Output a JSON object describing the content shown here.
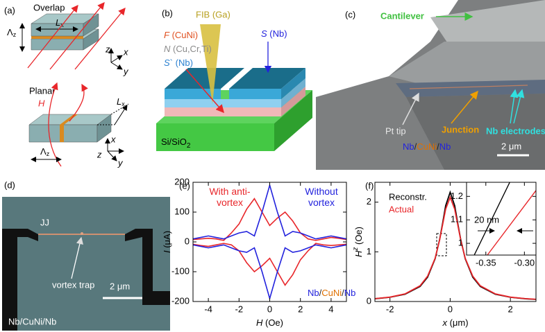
{
  "panel_a": {
    "label": "(a)",
    "overlap": "Overlap",
    "lambda_top": {
      "symbol": "Λ",
      "sub": "z"
    },
    "lx_top": {
      "symbol": "L",
      "sub": "x"
    },
    "axes_top": [
      "z",
      "y",
      "x"
    ],
    "planar": "Planar",
    "field": "H",
    "lx_bottom": {
      "symbol": "L",
      "sub": "x"
    },
    "lambda_bottom": {
      "symbol": "Λ",
      "sub": "z"
    },
    "axes_bottom": [
      "x",
      "z",
      "y"
    ]
  },
  "panel_b": {
    "label": "(b)",
    "fib": "FIB (Ga)",
    "f_layer": {
      "symbol": "F",
      "text": " (CuNi)"
    },
    "n_layer": {
      "symbol": "N",
      "text": " (Cu,Cr,Ti)"
    },
    "s_prime": {
      "symbol": "S",
      "prime": "`",
      "text": " (Nb)"
    },
    "s_layer": {
      "symbol": "S",
      "text": " (Nb)"
    },
    "substrate": {
      "text": "Si/SiO",
      "sub": "2"
    }
  },
  "panel_c": {
    "label": "(c)",
    "cantilever": "Cantilever",
    "pt_tip": "Pt tip",
    "junction": "Junction",
    "electrodes": "Nb electrodes",
    "material": [
      {
        "text": "Nb",
        "color": "#2222dd"
      },
      {
        "text": "/",
        "color": "#222222"
      },
      {
        "text": "CuNi",
        "color": "#e07000"
      },
      {
        "text": "/",
        "color": "#222222"
      },
      {
        "text": "Nb",
        "color": "#2222dd"
      }
    ],
    "scale": "2 μm"
  },
  "panel_d": {
    "label": "(d)",
    "jj": "JJ",
    "trap": "vortex trap",
    "scale": "2 μm",
    "material": "Nb/CuNi/Nb"
  },
  "chart_data": [
    {
      "type": "line",
      "label": "(e)",
      "xlabel": {
        "symbol": "H",
        "unit": "  (Oe)"
      },
      "ylabel": {
        "symbol": "I",
        "unit": " (μA)"
      },
      "x": [
        -5,
        -4.5,
        -4,
        -3.5,
        -3,
        -2.5,
        -2,
        -1.5,
        -1,
        -0.5,
        0,
        0.5,
        1,
        1.5,
        2,
        2.5,
        3,
        3.5,
        4,
        4.5,
        5
      ],
      "xlim": [
        -5,
        5
      ],
      "xticks": [
        -4,
        -2,
        0,
        2,
        4
      ],
      "ylim": [
        -200,
        200
      ],
      "yticks": [
        -200,
        -100,
        0,
        100,
        200
      ],
      "series": [
        {
          "name": "With anti-vortex",
          "color": "#e8262a",
          "values": [
            8,
            10,
            12,
            10,
            5,
            30,
            60,
            110,
            145,
            100,
            55,
            80,
            100,
            70,
            30,
            10,
            5,
            10,
            15,
            12,
            8
          ]
        },
        {
          "color": "#e8262a",
          "values": [
            -8,
            -12,
            -15,
            -10,
            -5,
            -10,
            -30,
            -70,
            -100,
            -80,
            -55,
            -100,
            -145,
            -110,
            -60,
            -30,
            -5,
            -10,
            -12,
            -10,
            -8
          ]
        },
        {
          "name": "Without vortex",
          "color": "#2222dd",
          "values": [
            10,
            15,
            20,
            15,
            10,
            20,
            30,
            35,
            20,
            100,
            190,
            100,
            20,
            35,
            30,
            20,
            10,
            15,
            20,
            15,
            10
          ]
        },
        {
          "color": "#2222dd",
          "values": [
            -10,
            -15,
            -20,
            -15,
            -10,
            -20,
            -30,
            -35,
            -20,
            -100,
            -190,
            -100,
            -20,
            -35,
            -30,
            -20,
            -10,
            -15,
            -20,
            -15,
            -10
          ]
        }
      ],
      "annotation_parts": [
        {
          "text": "Nb",
          "color": "#2222dd"
        },
        {
          "text": "/",
          "color": "#222222"
        },
        {
          "text": "CuNi",
          "color": "#e07000"
        },
        {
          "text": "/",
          "color": "#222222"
        },
        {
          "text": "Nb",
          "color": "#2222dd"
        }
      ]
    },
    {
      "type": "line",
      "label": "(f)",
      "xlabel": {
        "symbol": "x",
        "unit": " (μm)"
      },
      "ylabel": {
        "symbol": "H",
        "sup": "z",
        "unit": " (Oe)"
      },
      "x": [
        -2.5,
        -2,
        -1.5,
        -1,
        -0.75,
        -0.5,
        -0.35,
        -0.25,
        -0.15,
        0,
        0.15,
        0.25,
        0.35,
        0.5,
        0.75,
        1,
        1.5,
        2,
        2.5,
        2.85
      ],
      "xlim": [
        -2.5,
        2.85
      ],
      "xticks": [
        -2,
        0,
        2
      ],
      "ylim": [
        0,
        2.4
      ],
      "yticks": [
        0,
        1,
        2
      ],
      "series": [
        {
          "name": "Reconstr.",
          "color": "#000000",
          "values": [
            0.055,
            0.085,
            0.146,
            0.303,
            0.49,
            0.86,
            1.25,
            1.58,
            1.93,
            2.2,
            1.93,
            1.58,
            1.25,
            0.86,
            0.49,
            0.303,
            0.146,
            0.085,
            0.055,
            0.042
          ]
        },
        {
          "name": "Actual",
          "color": "#e8262a",
          "values": [
            0.058,
            0.088,
            0.153,
            0.317,
            0.51,
            0.87,
            1.24,
            1.55,
            1.86,
            2.1,
            1.86,
            1.55,
            1.24,
            0.87,
            0.51,
            0.317,
            0.153,
            0.088,
            0.058,
            0.045
          ]
        }
      ]
    },
    {
      "type": "line",
      "xlim": [
        -0.375,
        -0.285
      ],
      "xticks": [
        -0.35,
        {
          "value": -0.3,
          "label": "-0.30"
        }
      ],
      "ylim": [
        0.95,
        1.26
      ],
      "yticks": [
        1,
        1.1,
        1.2
      ],
      "annotation": "20 nm",
      "series": [
        {
          "color": "#000000",
          "x": [
            -0.365,
            -0.319
          ],
          "values": [
            0.95,
            1.26
          ]
        },
        {
          "color": "#e8262a",
          "x": [
            -0.348,
            -0.285
          ],
          "values": [
            0.95,
            1.225
          ]
        }
      ]
    }
  ]
}
